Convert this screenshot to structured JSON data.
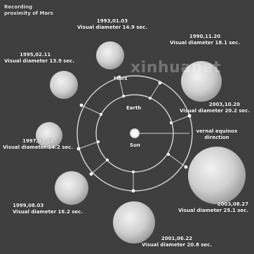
{
  "title": "Recording proximity of Mars",
  "watermark": "xinhuanet",
  "labels": {
    "mars": "Mars",
    "earth": "Earth",
    "sun": "Sun",
    "vernal_equinox": "vernal equinox direction"
  },
  "approaches": [
    {
      "date": "1993,01.03",
      "caption": "Visual diameter 14.9 sec."
    },
    {
      "date": "1990,11.20",
      "caption": "Visual diameter 18.1 sec."
    },
    {
      "date": "1995,02.11",
      "caption": "Visual diameter 13.9 sec."
    },
    {
      "date": "2003,10.20",
      "caption": "Visual diameter 20.2 sec."
    },
    {
      "date": "1997,03.21",
      "caption": "Visual diameter 14.2 sec."
    },
    {
      "date": "1999,08.03",
      "caption": "Visual diameter 16.2 sec."
    },
    {
      "date": "2003,08.27",
      "caption": "Visual diameter 25.1 sec."
    },
    {
      "date": "2001,06.22",
      "caption": "Visual diameter 20.8 sec."
    }
  ],
  "colors": {
    "background": "#3f3f3f",
    "orbit": "#d6d6d6",
    "planet": "#d9d9d9",
    "sun": "#ffffff",
    "text": "#ffffff"
  }
}
